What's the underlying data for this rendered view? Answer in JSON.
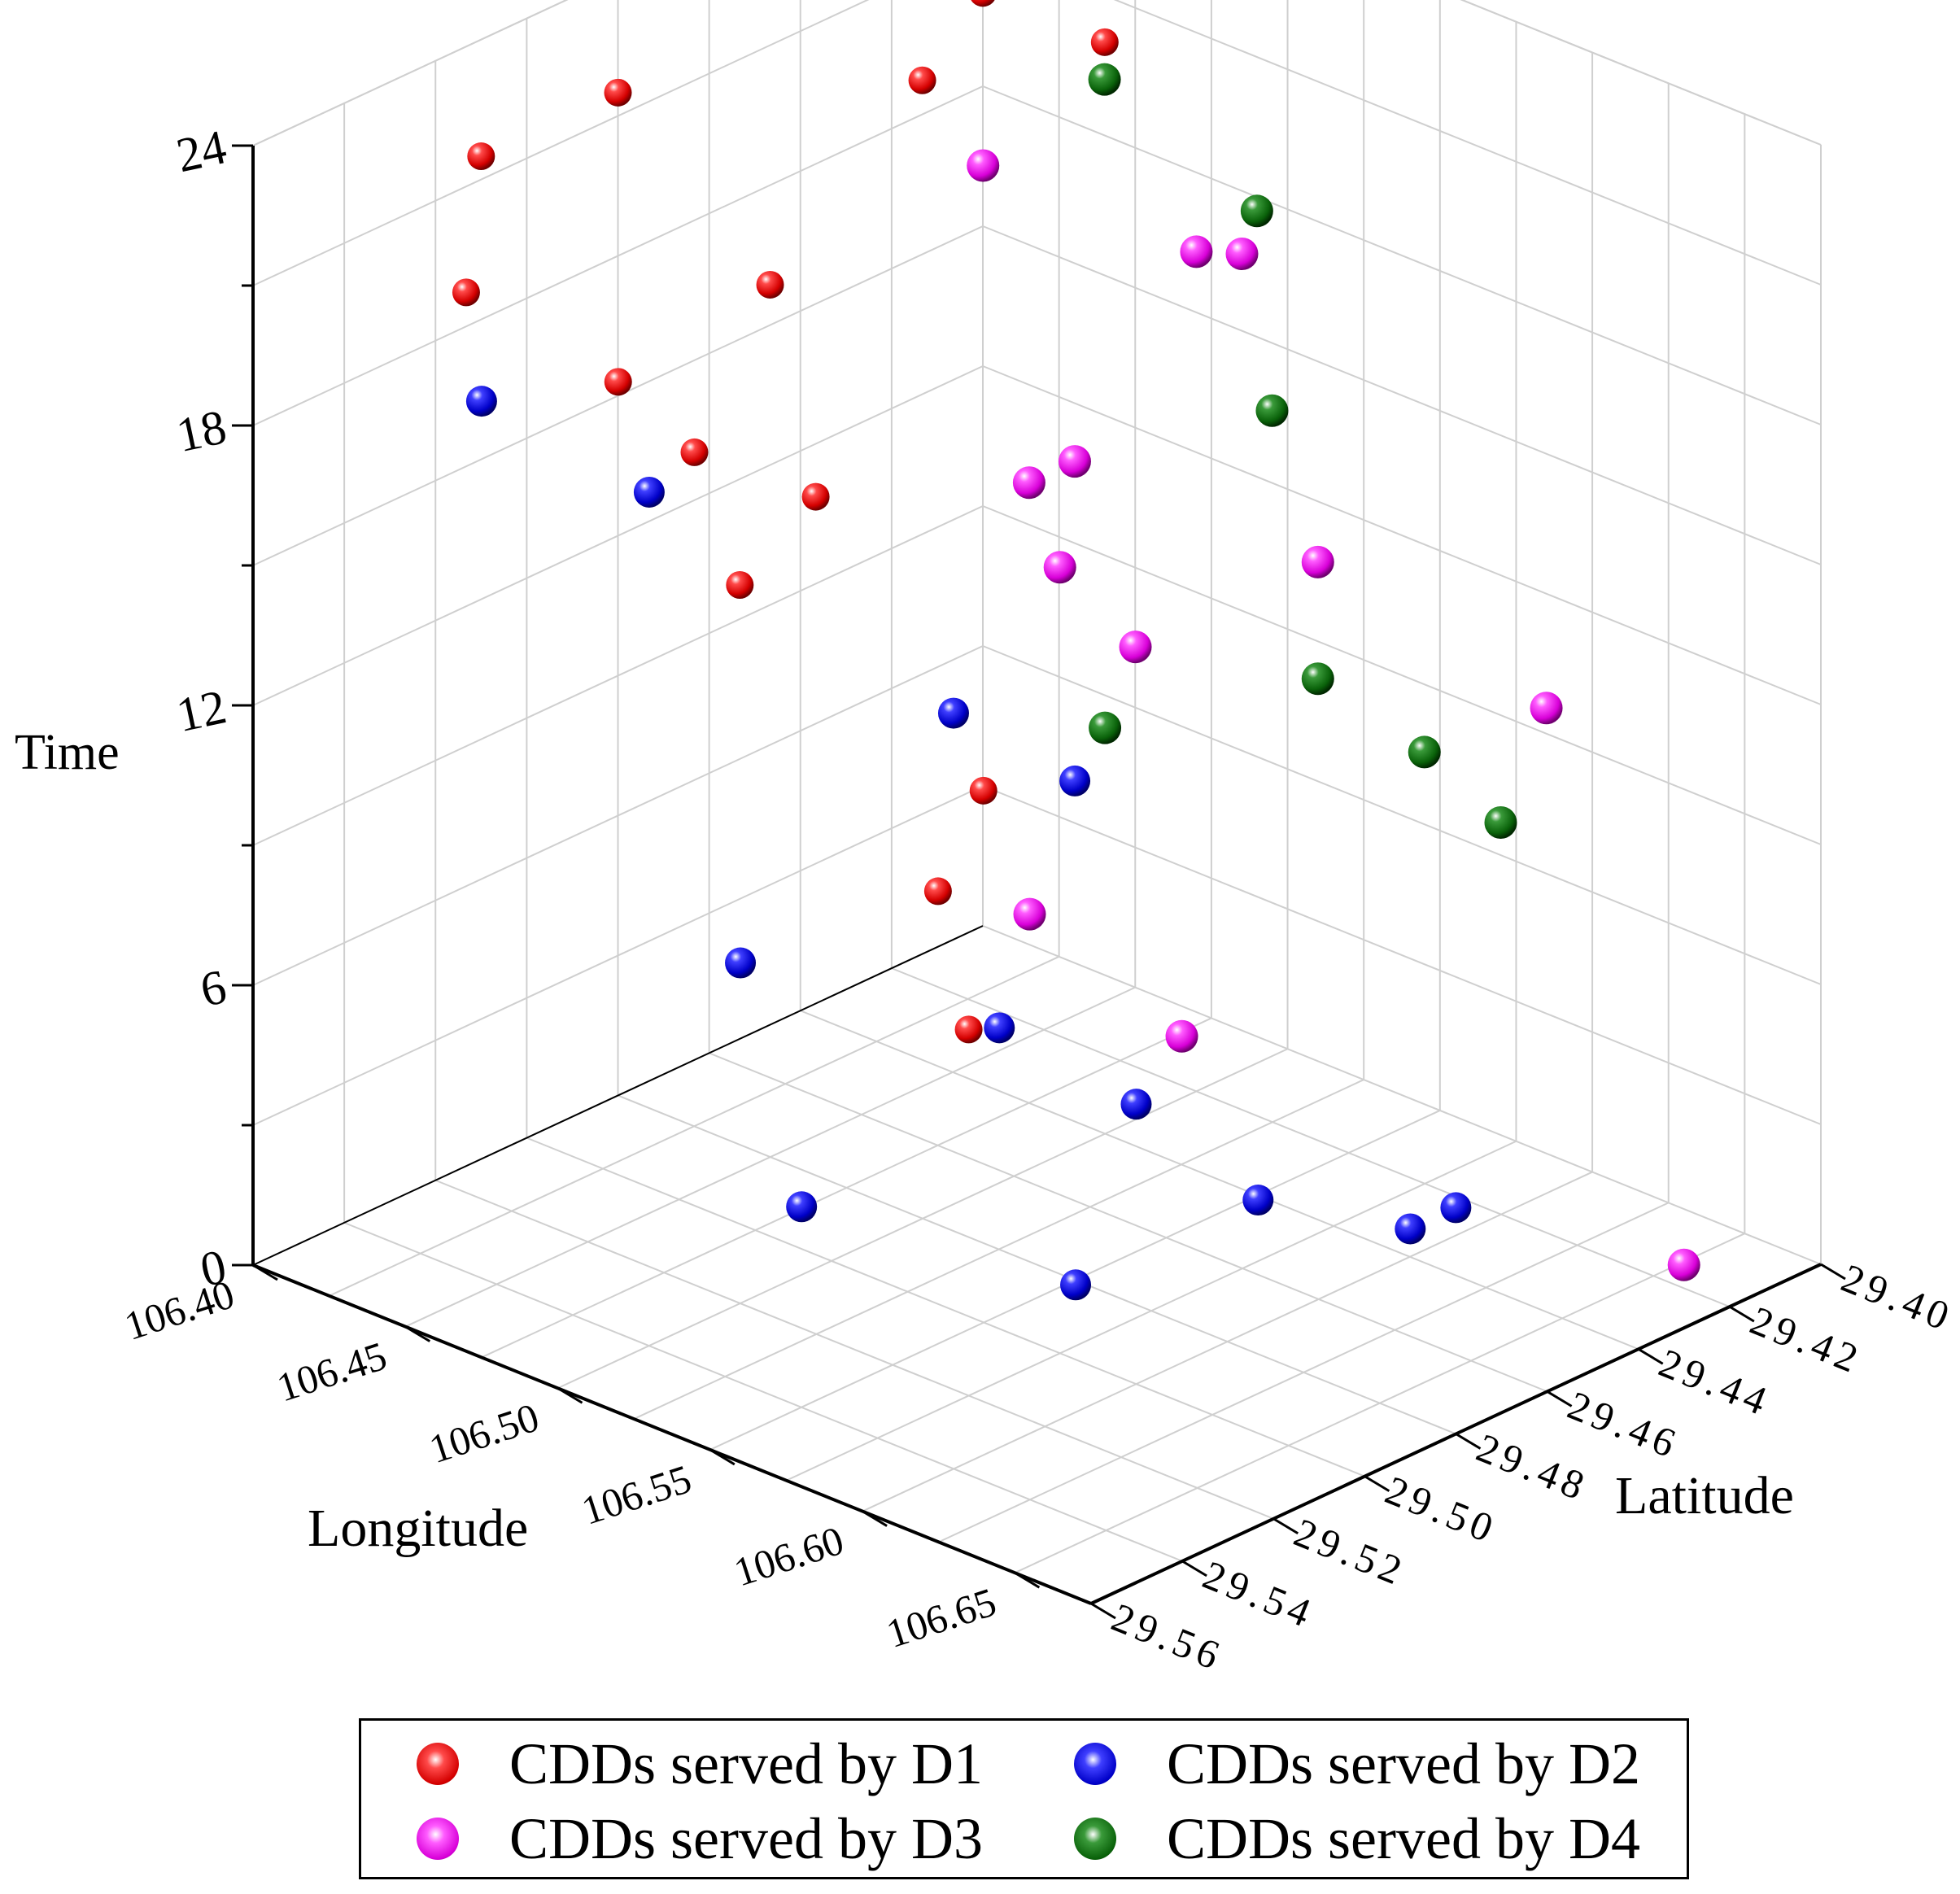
{
  "chart_data": {
    "type": "scatter3d",
    "axes": {
      "x": {
        "label": "Longitude",
        "range": [
          106.4,
          106.675
        ],
        "ticks": [
          "106.40",
          "106.45",
          "106.50",
          "106.55",
          "106.60",
          "106.65"
        ]
      },
      "y": {
        "label": "Latitude",
        "range": [
          29.4,
          29.56
        ],
        "ticks": [
          "29.40",
          "29.42",
          "29.44",
          "29.46",
          "29.48",
          "29.50",
          "29.52",
          "29.54",
          "29.56"
        ]
      },
      "z": {
        "label": "Time",
        "range": [
          0,
          24
        ],
        "ticks": [
          "0",
          "6",
          "12",
          "18",
          "24"
        ]
      }
    },
    "grid": true,
    "legend_position": "bottom",
    "series": [
      {
        "name": "CDDs served by D1",
        "color": "#e00000",
        "points": [
          [
            106.4,
            29.48,
            21.5
          ],
          [
            106.4,
            29.51,
            21.5
          ],
          [
            106.44,
            29.54,
            21.0
          ],
          [
            106.44,
            29.44,
            21.0
          ],
          [
            106.44,
            29.4,
            20.0
          ],
          [
            106.4,
            29.4,
            20.0
          ],
          [
            106.42,
            29.46,
            17.0
          ],
          [
            106.43,
            29.5,
            17.0
          ],
          [
            106.47,
            29.51,
            17.0
          ],
          [
            106.42,
            29.45,
            12.0
          ],
          [
            106.44,
            29.48,
            12.0
          ],
          [
            106.49,
            29.46,
            8.0
          ],
          [
            106.52,
            29.49,
            8.0
          ],
          [
            106.56,
            29.51,
            7.0
          ]
        ]
      },
      {
        "name": "CDDs served by D2",
        "color": "#0000d0",
        "points": [
          [
            106.475,
            29.56,
            20.5
          ],
          [
            106.53,
            29.56,
            20.0
          ],
          [
            106.57,
            29.52,
            14.5
          ],
          [
            106.52,
            29.46,
            9.0
          ],
          [
            106.53,
            29.54,
            9.0
          ],
          [
            106.6,
            29.53,
            9.0
          ],
          [
            106.6,
            29.5,
            6.0
          ],
          [
            106.58,
            29.56,
            6.0
          ],
          [
            106.64,
            29.54,
            5.0
          ],
          [
            106.64,
            29.5,
            5.0
          ],
          [
            106.66,
            29.48,
            4.0
          ],
          [
            106.66,
            29.47,
            4.0
          ]
        ]
      },
      {
        "name": "CDDs served by D3",
        "color": "#e020e0",
        "points": [
          [
            106.43,
            29.42,
            18.0
          ],
          [
            106.5,
            29.42,
            18.0
          ],
          [
            106.5,
            29.41,
            17.5
          ],
          [
            106.505,
            29.45,
            15.0
          ],
          [
            106.505,
            29.46,
            15.0
          ],
          [
            106.56,
            29.49,
            16.0
          ],
          [
            106.48,
            29.42,
            9.0
          ],
          [
            106.48,
            29.38,
            9.0
          ],
          [
            106.58,
            29.51,
            10.0
          ],
          [
            106.54,
            29.37,
            7.0
          ],
          [
            106.6,
            29.49,
            7.0
          ],
          [
            106.66,
            29.42,
            0.5
          ]
        ]
      },
      {
        "name": "CDDs served by D4",
        "color": "#0b6b0b",
        "points": [
          [
            106.38,
            29.38,
            21.0
          ],
          [
            106.41,
            29.4,
            21.0
          ],
          [
            106.41,
            29.38,
            17.5
          ],
          [
            106.46,
            29.38,
            16.0
          ],
          [
            106.45,
            29.37,
            11.0
          ],
          [
            106.48,
            29.38,
            6.5
          ],
          [
            106.5,
            29.37,
            5.0
          ],
          [
            106.54,
            29.38,
            5.0
          ],
          [
            106.47,
            29.42,
            7.0
          ]
        ]
      }
    ]
  }
}
